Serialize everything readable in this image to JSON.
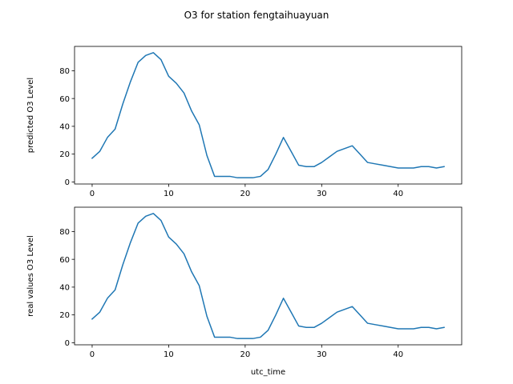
{
  "figure": {
    "title": "O3 for station fengtaihuayuan"
  },
  "chart_data": [
    {
      "type": "line",
      "ylabel": "predicted O3 Level",
      "xlabel": "",
      "xlim": [
        -2.3,
        48.3
      ],
      "ylim": [
        -1.5,
        97.5
      ],
      "xticks": [
        0,
        10,
        20,
        30,
        40
      ],
      "yticks": [
        0,
        20,
        40,
        60,
        80
      ],
      "xtick_labels": [
        "0",
        "10",
        "20",
        "30",
        "40"
      ],
      "ytick_labels": [
        "0",
        "20",
        "40",
        "60",
        "80"
      ],
      "grid": false,
      "color": "#1f77b4",
      "x": [
        0,
        1,
        2,
        3,
        4,
        5,
        6,
        7,
        8,
        9,
        10,
        11,
        12,
        13,
        14,
        15,
        16,
        17,
        18,
        19,
        20,
        21,
        22,
        23,
        24,
        25,
        26,
        27,
        28,
        29,
        30,
        31,
        32,
        33,
        34,
        35,
        36,
        37,
        38,
        39,
        40,
        41,
        42,
        43,
        44,
        45,
        46
      ],
      "values": [
        17,
        22,
        32,
        38,
        56,
        72,
        86,
        91,
        93,
        88,
        76,
        71,
        64,
        51,
        41,
        19,
        4,
        4,
        4,
        3,
        3,
        3,
        4,
        9,
        20,
        32,
        22,
        12,
        11,
        11,
        14,
        18,
        22,
        24,
        26,
        20,
        14,
        13,
        12,
        11,
        10,
        10,
        10,
        11,
        11,
        10,
        11
      ]
    },
    {
      "type": "line",
      "ylabel": "real values O3 Level",
      "xlabel": "utc_time",
      "xlim": [
        -2.3,
        48.3
      ],
      "ylim": [
        -1.5,
        97.5
      ],
      "xticks": [
        0,
        10,
        20,
        30,
        40
      ],
      "yticks": [
        0,
        20,
        40,
        60,
        80
      ],
      "xtick_labels": [
        "0",
        "10",
        "20",
        "30",
        "40"
      ],
      "ytick_labels": [
        "0",
        "20",
        "40",
        "60",
        "80"
      ],
      "grid": false,
      "color": "#1f77b4",
      "x": [
        0,
        1,
        2,
        3,
        4,
        5,
        6,
        7,
        8,
        9,
        10,
        11,
        12,
        13,
        14,
        15,
        16,
        17,
        18,
        19,
        20,
        21,
        22,
        23,
        24,
        25,
        26,
        27,
        28,
        29,
        30,
        31,
        32,
        33,
        34,
        35,
        36,
        37,
        38,
        39,
        40,
        41,
        42,
        43,
        44,
        45,
        46
      ],
      "values": [
        17,
        22,
        32,
        38,
        56,
        72,
        86,
        91,
        93,
        88,
        76,
        71,
        64,
        51,
        41,
        19,
        4,
        4,
        4,
        3,
        3,
        3,
        4,
        9,
        20,
        32,
        22,
        12,
        11,
        11,
        14,
        18,
        22,
        24,
        26,
        20,
        14,
        13,
        12,
        11,
        10,
        10,
        10,
        11,
        11,
        10,
        11
      ]
    }
  ]
}
